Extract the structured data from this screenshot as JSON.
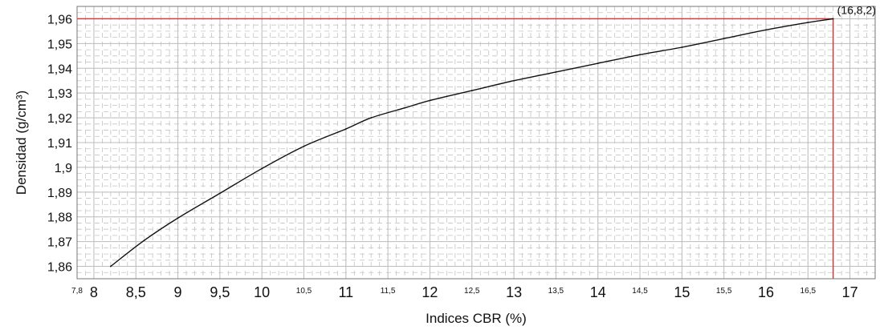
{
  "chart_data": {
    "type": "line",
    "xlabel": "Indices CBR (%)",
    "ylabel": "Densidad (g/cm³)",
    "xlim": [
      7.8,
      17.3
    ],
    "ylim": [
      1.855,
      1.965
    ],
    "grid": true,
    "x_ticks_major": [
      "8",
      "8,5",
      "9",
      "9,5",
      "10",
      "11",
      "12",
      "13",
      "14",
      "15",
      "16",
      "17"
    ],
    "x_ticks_minor": [
      "7,8",
      "10,5",
      "11,5",
      "12,5",
      "13,5",
      "14,5",
      "15,5",
      "16,5"
    ],
    "y_ticks": [
      "1,86",
      "1,87",
      "1,88",
      "1,89",
      "1,9",
      "1,91",
      "1,92",
      "1,93",
      "1,94",
      "1,95",
      "1,96"
    ],
    "series": [
      {
        "x": [
          8.2,
          8.6,
          9.0,
          9.5,
          10.0,
          10.5,
          11.0,
          11.3,
          11.7,
          12.0,
          12.5,
          13.0,
          13.5,
          14.0,
          14.5,
          15.0,
          15.5,
          16.0,
          16.5,
          16.8
        ],
        "y": [
          1.86,
          1.8705,
          1.8795,
          1.8895,
          1.8995,
          1.9085,
          1.9155,
          1.92,
          1.924,
          1.927,
          1.931,
          1.935,
          1.9385,
          1.942,
          1.9455,
          1.9485,
          1.952,
          1.9555,
          1.9585,
          1.96
        ]
      }
    ],
    "reference": {
      "x": 16.8,
      "y": 1.96,
      "color": "#e03030"
    },
    "annotations": [
      "(16,8,2)"
    ]
  }
}
